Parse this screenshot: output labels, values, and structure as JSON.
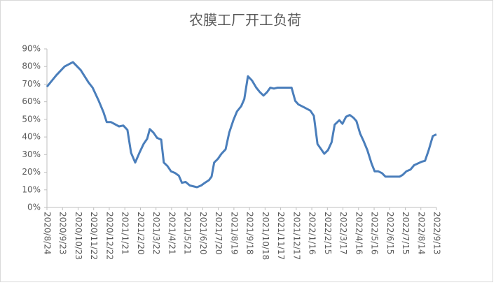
{
  "chart_data": {
    "type": "line",
    "title": "农膜工厂开工负荷",
    "x": [
      "2020/8/24",
      "2020/9/11",
      "2020/9/27",
      "2020/10/13",
      "2020/10/28",
      "2020/11/12",
      "2020/11/20",
      "2020/12/1",
      "2020/12/11",
      "2020/12/17",
      "2020/12/25",
      "2021/1/10",
      "2021/1/18",
      "2021/1/26",
      "2021/2/2",
      "2021/2/10",
      "2021/2/18",
      "2021/2/26",
      "2021/3/5",
      "2021/3/10",
      "2021/3/17",
      "2021/3/24",
      "2021/4/1",
      "2021/4/6",
      "2021/4/13",
      "2021/4/20",
      "2021/4/28",
      "2021/5/5",
      "2021/5/11",
      "2021/5/18",
      "2021/5/26",
      "2021/6/9",
      "2021/6/17",
      "2021/6/24",
      "2021/7/2",
      "2021/7/7",
      "2021/7/12",
      "2021/7/19",
      "2021/7/26",
      "2021/8/3",
      "2021/8/10",
      "2021/8/18",
      "2021/8/25",
      "2021/9/2",
      "2021/9/8",
      "2021/9/15",
      "2021/9/23",
      "2021/10/1",
      "2021/10/8",
      "2021/10/15",
      "2021/10/22",
      "2021/10/28",
      "2021/11/4",
      "2021/11/11",
      "2021/12/8",
      "2021/12/15",
      "2021/12/21",
      "2021/12/31",
      "2022/1/13",
      "2022/1/20",
      "2022/1/27",
      "2022/2/9",
      "2022/2/16",
      "2022/2/23",
      "2022/3/1",
      "2022/3/10",
      "2022/3/16",
      "2022/3/23",
      "2022/3/30",
      "2022/4/6",
      "2022/4/12",
      "2022/4/19",
      "2022/4/26",
      "2022/5/3",
      "2022/5/11",
      "2022/5/17",
      "2022/5/24",
      "2022/5/31",
      "2022/6/7",
      "2022/7/4",
      "2022/7/10",
      "2022/7/17",
      "2022/7/25",
      "2022/8/1",
      "2022/8/16",
      "2022/8/22",
      "2022/8/29",
      "2022/9/6",
      "2022/9/13"
    ],
    "series": [
      {
        "color": "#4a7ebb",
        "values": [
          68.5,
          75,
          80,
          82.5,
          78,
          71,
          68,
          61,
          54,
          48.5,
          48.5,
          46,
          46.5,
          44,
          31,
          25.5,
          31,
          36,
          39,
          44.5,
          42.5,
          39.5,
          38.5,
          25.5,
          23.5,
          20.5,
          19.5,
          18,
          14,
          14.5,
          12.5,
          11.5,
          12.5,
          14,
          15.5,
          17.5,
          25.5,
          27.5,
          30.5,
          33,
          42.5,
          49.5,
          54.5,
          57.5,
          61.5,
          74.5,
          72,
          68,
          65.5,
          63.5,
          65.5,
          68,
          67.5,
          68,
          68,
          60.5,
          58.5,
          57,
          55,
          52,
          36,
          30.5,
          32.5,
          37,
          47,
          49.5,
          47.5,
          51.5,
          52.5,
          51,
          49,
          42,
          37.5,
          32.5,
          25,
          20.5,
          20.5,
          19.5,
          17.5,
          17.5,
          18.5,
          20.5,
          21.5,
          24,
          26,
          26.5,
          32.5,
          40.5,
          41.5
        ]
      }
    ],
    "xlim": [
      "2020/8/24",
      "2022/9/13"
    ],
    "xticks": [
      "2020/8/24",
      "2020/9/23",
      "2020/10/23",
      "2020/11/22",
      "2020/12/22",
      "2021/1/21",
      "2021/2/20",
      "2021/3/22",
      "2021/4/21",
      "2021/5/21",
      "2021/6/20",
      "2021/7/20",
      "2021/8/19",
      "2021/9/18",
      "2021/10/18",
      "2021/11/17",
      "2021/12/17",
      "2022/1/16",
      "2022/2/15",
      "2022/3/17",
      "2022/4/16",
      "2022/5/16",
      "2022/6/15",
      "2022/7/15",
      "2022/8/14",
      "2022/9/13"
    ],
    "ylim": [
      0,
      90
    ],
    "yticks": [
      {
        "value": 0,
        "label": "0%"
      },
      {
        "value": 10,
        "label": "10%"
      },
      {
        "value": 20,
        "label": "20%"
      },
      {
        "value": 30,
        "label": "30%"
      },
      {
        "value": 40,
        "label": "40%"
      },
      {
        "value": 50,
        "label": "50%"
      },
      {
        "value": 60,
        "label": "60%"
      },
      {
        "value": 70,
        "label": "70%"
      },
      {
        "value": 80,
        "label": "80%"
      },
      {
        "value": 90,
        "label": "90%"
      }
    ],
    "grid": false
  }
}
